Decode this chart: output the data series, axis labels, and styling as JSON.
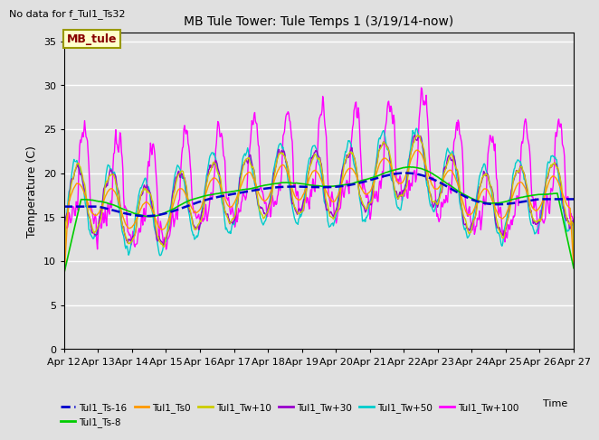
{
  "title": "MB Tule Tower: Tule Temps 1 (3/19/14-now)",
  "no_data_text": "No data for f_Tul1_Ts32",
  "xlabel": "Time",
  "ylabel": "Temperature (C)",
  "ylim": [
    0,
    36
  ],
  "yticks": [
    0,
    5,
    10,
    15,
    20,
    25,
    30,
    35
  ],
  "background_color": "#e0e0e0",
  "plot_bg_color": "#e0e0e0",
  "legend_box_color": "#ffffcc",
  "legend_box_edge": "#999900",
  "legend_box_text": "MB_tule",
  "series_colors": {
    "Ts-16": "#0000cc",
    "Ts-8": "#00cc00",
    "Ts0": "#ff9900",
    "Tw+10": "#cccc00",
    "Tw+30": "#9900cc",
    "Tw+50": "#00cccc",
    "Tw+100": "#ff00ff"
  },
  "x_tick_labels": [
    "Apr 12",
    "Apr 13",
    "Apr 14",
    "Apr 15",
    "Apr 16",
    "Apr 17",
    "Apr 18",
    "Apr 19",
    "Apr 20",
    "Apr 21",
    "Apr 22",
    "Apr 23",
    "Apr 24",
    "Apr 25",
    "Apr 26",
    "Apr 27"
  ],
  "n_days": 15,
  "pts_per_day": 48
}
